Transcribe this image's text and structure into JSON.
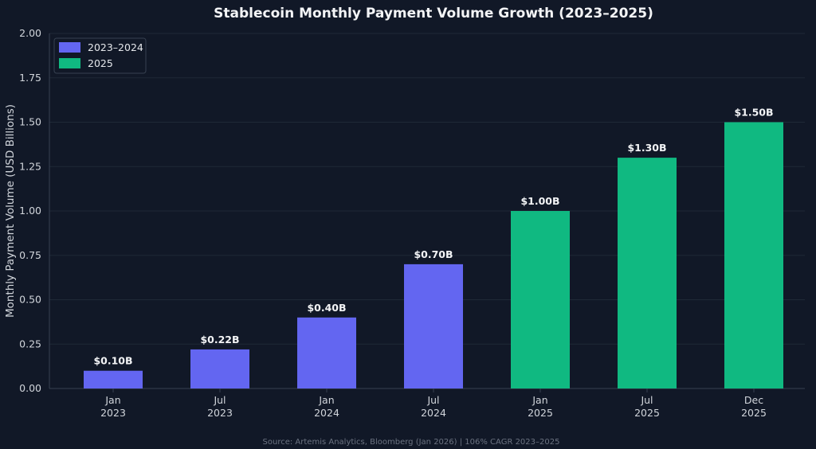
{
  "chart_data": {
    "type": "bar",
    "title": "Stablecoin Monthly Payment Volume Growth (2023–2025)",
    "ylabel": "Monthly Payment Volume (USD Billions)",
    "xlabel": "",
    "ylim": [
      0,
      2.0
    ],
    "yticks": [
      "0.00",
      "0.25",
      "0.50",
      "0.75",
      "1.00",
      "1.25",
      "1.50",
      "1.75",
      "2.00"
    ],
    "ytick_values": [
      0,
      0.25,
      0.5,
      0.75,
      1.0,
      1.25,
      1.5,
      1.75,
      2.0
    ],
    "categories": [
      {
        "line1": "Jan",
        "line2": "2023"
      },
      {
        "line1": "Jul",
        "line2": "2023"
      },
      {
        "line1": "Jan",
        "line2": "2024"
      },
      {
        "line1": "Jul",
        "line2": "2024"
      },
      {
        "line1": "Jan",
        "line2": "2025"
      },
      {
        "line1": "Jul",
        "line2": "2025"
      },
      {
        "line1": "Dec",
        "line2": "2025"
      }
    ],
    "values": [
      0.1,
      0.22,
      0.4,
      0.7,
      1.0,
      1.3,
      1.5
    ],
    "value_labels": [
      "$0.10B",
      "$0.22B",
      "$0.40B",
      "$0.70B",
      "$1.00B",
      "$1.30B",
      "$1.50B"
    ],
    "groups": [
      0,
      0,
      0,
      0,
      1,
      1,
      1
    ],
    "legend": {
      "placement": "top-left",
      "entries": [
        {
          "label": "2023–2024",
          "color": "#6366f1"
        },
        {
          "label": "2025",
          "color": "#10b981"
        }
      ]
    },
    "grid": true,
    "source": "Source: Artemis Analytics, Bloomberg (Jan 2026) | 106% CAGR 2023–2025"
  }
}
